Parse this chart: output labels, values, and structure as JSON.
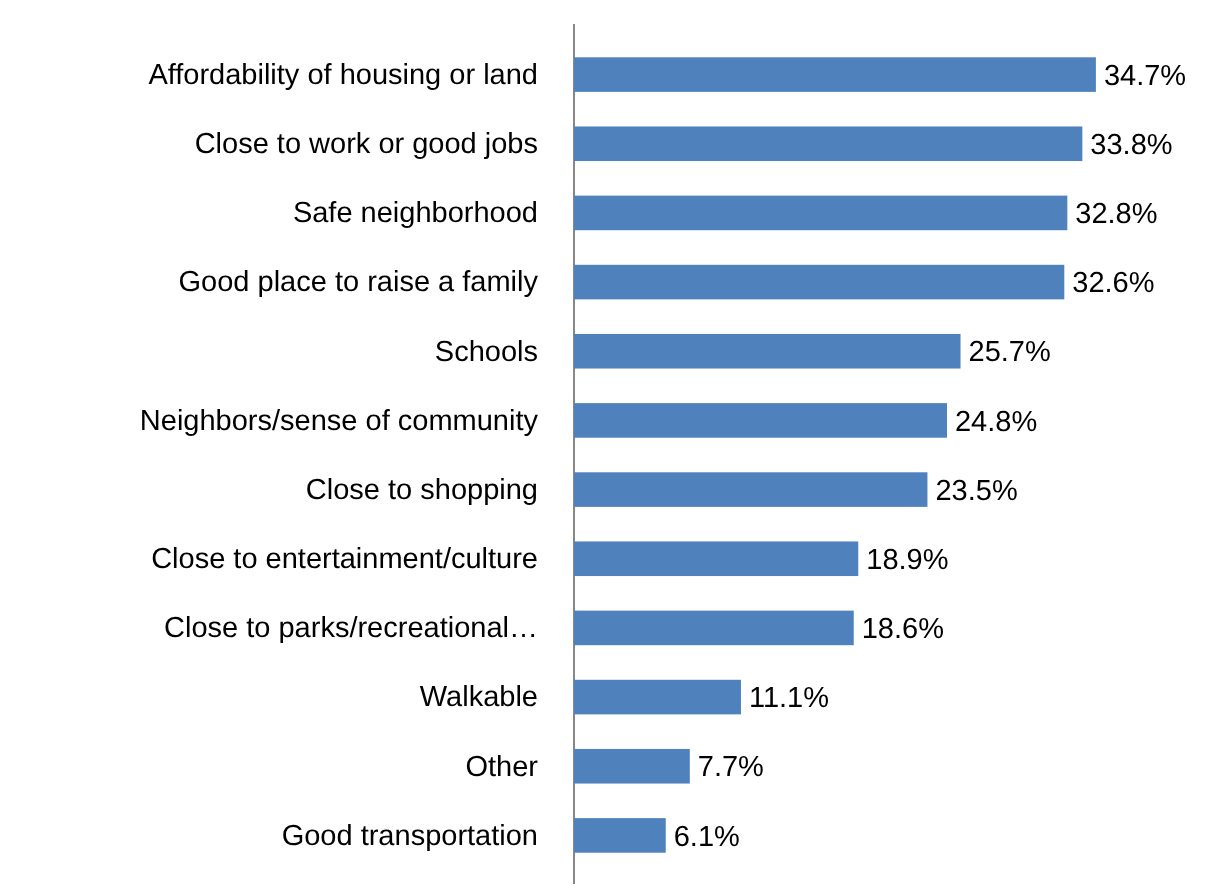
{
  "chart_data": {
    "type": "bar",
    "orientation": "horizontal",
    "data_labels": true,
    "categories": [
      "Affordability of housing or land",
      "Close to work or good jobs",
      "Safe neighborhood",
      "Good place to raise a family",
      "Schools",
      "Neighbors/sense of community",
      "Close to shopping",
      "Close to entertainment/culture",
      "Close to parks/recreational…",
      "Walkable",
      "Other",
      "Good transportation"
    ],
    "values": [
      34.7,
      33.8,
      32.8,
      32.6,
      25.7,
      24.8,
      23.5,
      18.9,
      18.6,
      11.1,
      7.7,
      6.1
    ],
    "value_labels": [
      "34.7%",
      "33.8%",
      "32.8%",
      "32.6%",
      "25.7%",
      "24.8%",
      "23.5%",
      "18.9%",
      "18.6%",
      "11.1%",
      "7.7%",
      "6.1%"
    ],
    "color": "#4f81bd"
  }
}
